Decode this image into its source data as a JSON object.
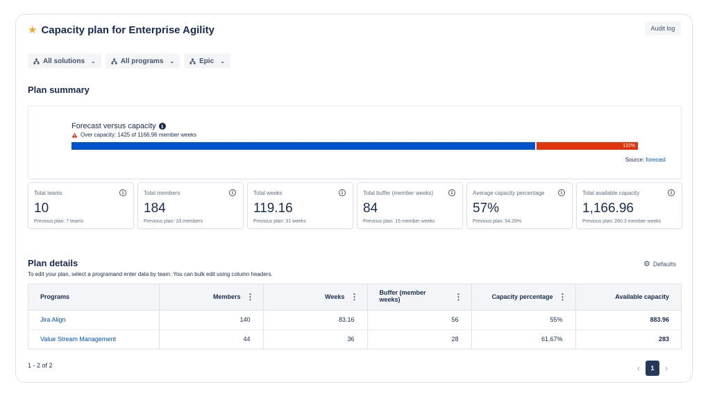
{
  "header": {
    "title": "Capacity plan for Enterprise Agility",
    "audit_label": "Audit log"
  },
  "filters": [
    {
      "label": "All solutions"
    },
    {
      "label": "All programs"
    },
    {
      "label": "Epic"
    }
  ],
  "summary": {
    "title": "Plan summary",
    "forecast": {
      "title": "Forecast versus capacity",
      "warning": "Over capacity: 1425 of 1166.96 member weeks",
      "percent_label": "122%",
      "percent_value": 122,
      "source_prefix": "Source:",
      "source_link": "forecast"
    },
    "metrics": [
      {
        "label": "Total teams",
        "value": "10",
        "previous": "Previous plan: 7 teams"
      },
      {
        "label": "Total members",
        "value": "184",
        "previous": "Previous plan: 33 members"
      },
      {
        "label": "Total weeks",
        "value": "119.16",
        "previous": "Previous plan: 31 weeks"
      },
      {
        "label": "Total buffer (member weeks)",
        "value": "84",
        "previous": "Previous plan: 15 member weeks"
      },
      {
        "label": "Average capacity percentage",
        "value": "57%",
        "previous": "Previous plan: 54.29%"
      },
      {
        "label": "Total available capacity",
        "value": "1,166.96",
        "previous": "Previous plan: 260.3 member weeks"
      }
    ]
  },
  "details": {
    "title": "Plan details",
    "subtitle": "To edit your plan, select a programand enter data by team. You can bulk edit using column headers.",
    "defaults_label": "Defaults",
    "columns": [
      "Programs",
      "Members",
      "Weeks",
      "Buffer (member weeks)",
      "Capacity percentage",
      "Available capacity"
    ],
    "rows": [
      {
        "program": "Jira Align",
        "members": "140",
        "weeks": "83.16",
        "buffer": "56",
        "capacity": "55%",
        "available": "883.96"
      },
      {
        "program": "Value Stream Management",
        "members": "44",
        "weeks": "36",
        "buffer": "28",
        "capacity": "61.67%",
        "available": "283"
      }
    ]
  },
  "pagination": {
    "count": "1 - 2 of 2",
    "current_page": "1"
  },
  "colors": {
    "accent": "#0052cc",
    "over_capacity": "#de350b",
    "star": "#f5a623",
    "active_page": "#253858"
  }
}
